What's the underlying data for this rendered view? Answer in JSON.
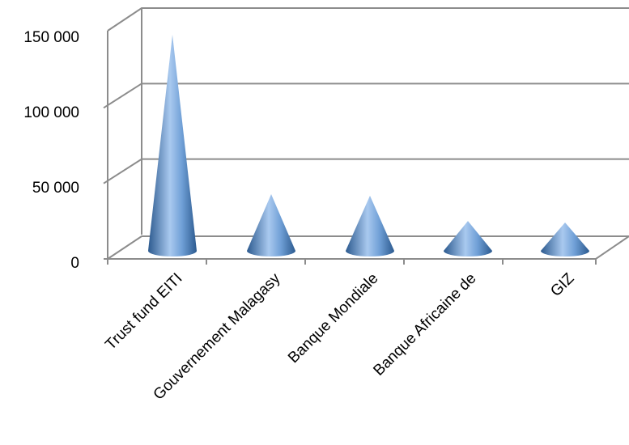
{
  "chart_data": {
    "type": "bar",
    "style": "3d-cone",
    "categories": [
      "Trust fund EITI",
      "Gouvernement Malagasy",
      "Banque Mondiale",
      "Banque Africaine de",
      "GIZ"
    ],
    "series": [
      {
        "values": [
          145000,
          38000,
          37000,
          20000,
          19000
        ]
      }
    ],
    "y_ticks": [
      "0",
      "50 000",
      "100 000",
      "150 000"
    ],
    "ylim": [
      0,
      150000
    ],
    "grid": true,
    "legend": "none",
    "colors": {
      "cone": "#4f81bd",
      "cone_light": "#a9c9ef",
      "cone_dark": "#2c5a8f",
      "grid": "#8c8c8c"
    }
  }
}
